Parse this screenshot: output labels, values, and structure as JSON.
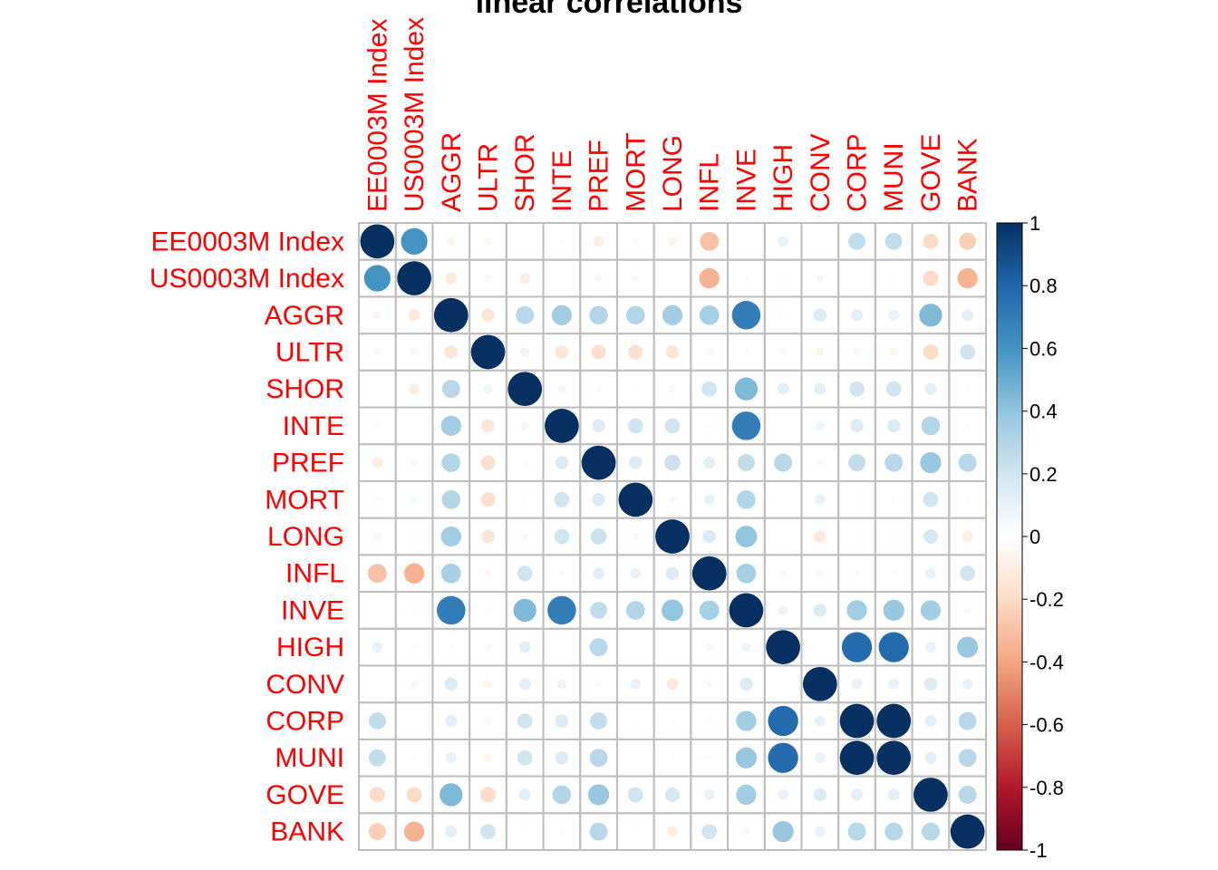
{
  "chart_data": {
    "type": "heatmap",
    "subtype": "corrplot-circle",
    "title": "linear correlations",
    "variables": [
      "EE0003M Index",
      "US0003M Index",
      "AGGR",
      "ULTR",
      "SHOR",
      "INTE",
      "PREF",
      "MORT",
      "LONG",
      "INFL",
      "INVE",
      "HIGH",
      "CONV",
      "CORP",
      "MUNI",
      "GOVE",
      "BANK"
    ],
    "matrix": [
      [
        1.0,
        0.6,
        -0.06,
        -0.05,
        0.0,
        0.03,
        -0.1,
        -0.03,
        -0.06,
        -0.3,
        0.0,
        0.1,
        0.0,
        0.25,
        0.25,
        -0.2,
        -0.25
      ],
      [
        0.6,
        1.0,
        -0.12,
        0.05,
        -0.1,
        0.0,
        -0.05,
        0.05,
        -0.02,
        -0.35,
        -0.03,
        -0.02,
        -0.05,
        0.01,
        0.02,
        -0.2,
        -0.35
      ],
      [
        -0.06,
        -0.12,
        1.0,
        -0.15,
        0.28,
        0.35,
        0.3,
        0.3,
        0.35,
        0.33,
        0.7,
        0.02,
        0.15,
        0.12,
        0.1,
        0.45,
        0.12
      ],
      [
        -0.05,
        0.05,
        -0.15,
        1.0,
        0.08,
        -0.15,
        -0.18,
        -0.18,
        -0.15,
        -0.05,
        -0.03,
        0.05,
        -0.06,
        -0.05,
        -0.06,
        -0.2,
        0.2
      ],
      [
        0.0,
        -0.1,
        0.28,
        0.08,
        1.0,
        0.06,
        0.03,
        0.02,
        0.05,
        0.2,
        0.45,
        0.12,
        0.12,
        0.2,
        0.2,
        0.12,
        0.02
      ],
      [
        0.03,
        0.0,
        0.35,
        -0.15,
        0.06,
        1.0,
        0.15,
        0.2,
        0.2,
        0.03,
        0.7,
        0.0,
        0.08,
        0.15,
        0.15,
        0.3,
        0.03
      ],
      [
        -0.1,
        -0.05,
        0.3,
        -0.18,
        0.03,
        0.15,
        1.0,
        0.15,
        0.22,
        0.12,
        0.25,
        0.28,
        0.04,
        0.25,
        0.28,
        0.38,
        0.28
      ],
      [
        -0.03,
        0.05,
        0.3,
        -0.18,
        0.02,
        0.2,
        0.15,
        1.0,
        0.05,
        0.1,
        0.3,
        0.0,
        0.1,
        0.02,
        0.02,
        0.2,
        0.02
      ],
      [
        -0.06,
        -0.02,
        0.35,
        -0.15,
        0.05,
        0.2,
        0.22,
        0.05,
        1.0,
        0.15,
        0.4,
        0.0,
        -0.12,
        0.02,
        0.02,
        0.18,
        -0.1
      ],
      [
        -0.3,
        -0.35,
        0.33,
        -0.05,
        0.2,
        0.03,
        0.12,
        0.1,
        0.15,
        1.0,
        0.33,
        0.05,
        0.05,
        0.03,
        0.03,
        0.1,
        0.2
      ],
      [
        0.0,
        -0.03,
        0.7,
        -0.03,
        0.45,
        0.7,
        0.25,
        0.3,
        0.4,
        0.33,
        1.0,
        0.08,
        0.15,
        0.35,
        0.38,
        0.35,
        0.05
      ],
      [
        0.1,
        -0.02,
        0.02,
        0.05,
        0.12,
        0.0,
        0.28,
        0.0,
        0.0,
        0.05,
        0.08,
        1.0,
        0.0,
        0.78,
        0.78,
        0.1,
        0.38
      ],
      [
        0.0,
        -0.05,
        0.15,
        -0.06,
        0.12,
        0.08,
        0.04,
        0.1,
        -0.12,
        0.05,
        0.15,
        0.0,
        1.0,
        0.1,
        0.1,
        0.15,
        0.1
      ],
      [
        0.25,
        0.01,
        0.12,
        -0.05,
        0.2,
        0.15,
        0.25,
        0.02,
        0.02,
        0.03,
        0.35,
        0.78,
        0.1,
        1.0,
        1.0,
        0.12,
        0.28
      ],
      [
        0.25,
        0.02,
        0.1,
        -0.06,
        0.2,
        0.15,
        0.28,
        0.02,
        0.02,
        0.03,
        0.38,
        0.78,
        0.1,
        1.0,
        1.0,
        0.12,
        0.28
      ],
      [
        -0.2,
        -0.2,
        0.45,
        -0.2,
        0.12,
        0.3,
        0.38,
        0.2,
        0.18,
        0.1,
        0.35,
        0.1,
        0.15,
        0.12,
        0.12,
        1.0,
        0.28
      ],
      [
        -0.25,
        -0.35,
        0.12,
        0.2,
        0.02,
        0.03,
        0.28,
        0.02,
        -0.1,
        0.2,
        0.05,
        0.38,
        0.1,
        0.28,
        0.28,
        0.28,
        1.0
      ]
    ],
    "legend": {
      "ticks": [
        "1",
        "0.8",
        "0.6",
        "0.4",
        "0.2",
        "0",
        "-0.2",
        "-0.4",
        "-0.6",
        "-0.8",
        "-1"
      ],
      "tick_values": [
        1,
        0.8,
        0.6,
        0.4,
        0.2,
        0,
        -0.2,
        -0.4,
        -0.6,
        -0.8,
        -1
      ],
      "range": [
        -1,
        1
      ],
      "placement": "right"
    },
    "color_scale": {
      "stops": [
        {
          "value": -1.0,
          "color": "#67001F"
        },
        {
          "value": -0.8,
          "color": "#B2182B"
        },
        {
          "value": -0.6,
          "color": "#D6604D"
        },
        {
          "value": -0.4,
          "color": "#F4A582"
        },
        {
          "value": -0.2,
          "color": "#FDDBC7"
        },
        {
          "value": 0.0,
          "color": "#FFFFFF"
        },
        {
          "value": 0.2,
          "color": "#D1E5F0"
        },
        {
          "value": 0.4,
          "color": "#92C5DE"
        },
        {
          "value": 0.6,
          "color": "#4393C3"
        },
        {
          "value": 0.8,
          "color": "#2166AC"
        },
        {
          "value": 1.0,
          "color": "#053061"
        }
      ]
    },
    "grid": true
  },
  "colors": {
    "label": "#FF0000",
    "grid_line": "#BEBEBE",
    "title": "#000000"
  }
}
